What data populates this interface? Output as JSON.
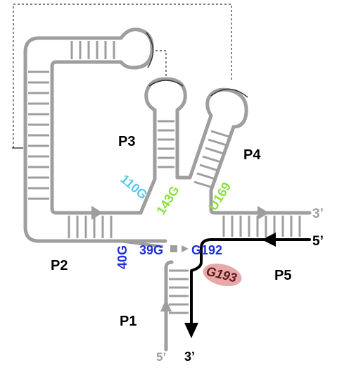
{
  "domains": {
    "p1": "P1",
    "p2": "P2",
    "p3": "P3",
    "p4": "P4",
    "p5": "P5"
  },
  "nucleotides": {
    "n110": "110G",
    "n143": "143G",
    "n169": "U169",
    "n40": "40G",
    "n39": "39G",
    "n192": "G192",
    "n193": "G193"
  },
  "ends": {
    "p5_top_3prime": "3’",
    "p5_bottom_5prime": "5’",
    "p1_left_5prime": "5’",
    "p1_right_3prime": "3’"
  },
  "colors": {
    "backbone": "#9e9e9e",
    "strand_black": "#000000",
    "cyan_label": "#56c8ee",
    "green_label": "#8be03a",
    "blue_label": "#1d2fd6",
    "highlight": "#e8a8a8"
  }
}
